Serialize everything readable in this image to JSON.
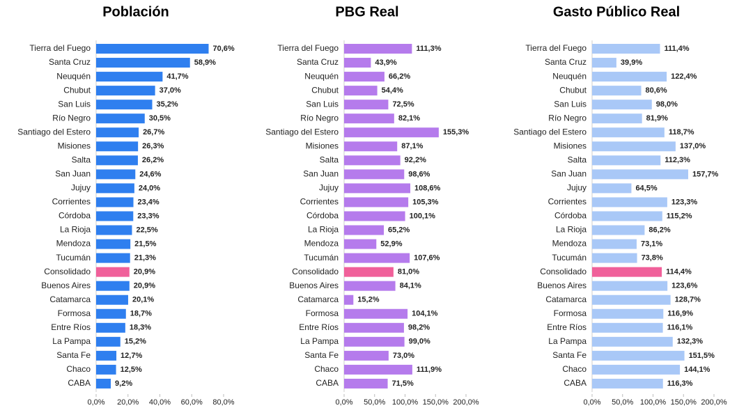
{
  "chart_data": [
    {
      "type": "barh",
      "title": "Población",
      "categories": [
        "Tierra del Fuego",
        "Santa Cruz",
        "Neuquén",
        "Chubut",
        "San Luis",
        "Río Negro",
        "Santiago del Estero",
        "Misiones",
        "Salta",
        "San Juan",
        "Jujuy",
        "Corrientes",
        "Córdoba",
        "La Rioja",
        "Mendoza",
        "Tucumán",
        "Consolidado",
        "Buenos Aires",
        "Catamarca",
        "Formosa",
        "Entre Ríos",
        "La Pampa",
        "Santa Fe",
        "Chaco",
        "CABA"
      ],
      "values": [
        70.6,
        58.9,
        41.7,
        37.0,
        35.2,
        30.5,
        26.7,
        26.3,
        26.2,
        24.6,
        24.0,
        23.4,
        23.3,
        22.5,
        21.5,
        21.3,
        20.9,
        20.9,
        20.1,
        18.7,
        18.3,
        15.2,
        12.7,
        12.5,
        9.2
      ],
      "value_labels": [
        "70,6%",
        "58,9%",
        "41,7%",
        "37,0%",
        "35,2%",
        "30,5%",
        "26,7%",
        "26,3%",
        "26,2%",
        "24,6%",
        "24,0%",
        "23,4%",
        "23,3%",
        "22,5%",
        "21,5%",
        "21,3%",
        "20,9%",
        "20,9%",
        "20,1%",
        "18,7%",
        "18,3%",
        "15,2%",
        "12,7%",
        "12,5%",
        "9,2%"
      ],
      "colors": [
        "#2f7fef",
        "#2f7fef",
        "#2f7fef",
        "#2f7fef",
        "#2f7fef",
        "#2f7fef",
        "#2f7fef",
        "#2f7fef",
        "#2f7fef",
        "#2f7fef",
        "#2f7fef",
        "#2f7fef",
        "#2f7fef",
        "#2f7fef",
        "#2f7fef",
        "#2f7fef",
        "#f0609a",
        "#2f7fef",
        "#2f7fef",
        "#2f7fef",
        "#2f7fef",
        "#2f7fef",
        "#2f7fef",
        "#2f7fef",
        "#2f7fef"
      ],
      "xlim": [
        0,
        80
      ],
      "xticks": [
        {
          "value": 0,
          "label": "0,0%"
        },
        {
          "value": 20,
          "label": "20,0%"
        },
        {
          "value": 40,
          "label": "40,0%"
        },
        {
          "value": 60,
          "label": "60,0%"
        },
        {
          "value": 80,
          "label": "80,0%"
        }
      ]
    },
    {
      "type": "barh",
      "title": "PBG Real",
      "categories": [
        "Tierra del Fuego",
        "Santa Cruz",
        "Neuquén",
        "Chubut",
        "San Luis",
        "Río Negro",
        "Santiago del Estero",
        "Misiones",
        "Salta",
        "San Juan",
        "Jujuy",
        "Corrientes",
        "Córdoba",
        "La Rioja",
        "Mendoza",
        "Tucumán",
        "Consolidado",
        "Buenos Aires",
        "Catamarca",
        "Formosa",
        "Entre Ríos",
        "La Pampa",
        "Santa Fe",
        "Chaco",
        "CABA"
      ],
      "values": [
        111.3,
        43.9,
        66.2,
        54.4,
        72.5,
        82.1,
        155.3,
        87.1,
        92.2,
        98.6,
        108.6,
        105.3,
        100.1,
        65.2,
        52.9,
        107.6,
        81.0,
        84.1,
        15.2,
        104.1,
        98.2,
        99.0,
        73.0,
        111.9,
        71.5
      ],
      "value_labels": [
        "111,3%",
        "43,9%",
        "66,2%",
        "54,4%",
        "72,5%",
        "82,1%",
        "155,3%",
        "87,1%",
        "92,2%",
        "98,6%",
        "108,6%",
        "105,3%",
        "100,1%",
        "65,2%",
        "52,9%",
        "107,6%",
        "81,0%",
        "84,1%",
        "15,2%",
        "104,1%",
        "98,2%",
        "99,0%",
        "73,0%",
        "111,9%",
        "71,5%"
      ],
      "colors": [
        "#b57bec",
        "#b57bec",
        "#b57bec",
        "#b57bec",
        "#b57bec",
        "#b57bec",
        "#b57bec",
        "#b57bec",
        "#b57bec",
        "#b57bec",
        "#b57bec",
        "#b57bec",
        "#b57bec",
        "#b57bec",
        "#b57bec",
        "#b57bec",
        "#f0609a",
        "#b57bec",
        "#b57bec",
        "#b57bec",
        "#b57bec",
        "#b57bec",
        "#b57bec",
        "#b57bec",
        "#b57bec"
      ],
      "xlim": [
        0,
        200
      ],
      "xticks": [
        {
          "value": 0,
          "label": "0,0%"
        },
        {
          "value": 50,
          "label": "50,0%"
        },
        {
          "value": 100,
          "label": "100,0%"
        },
        {
          "value": 150,
          "label": "150,0%"
        },
        {
          "value": 200,
          "label": "200,0%"
        }
      ]
    },
    {
      "type": "barh",
      "title": "Gasto Público Real",
      "categories": [
        "Tierra del Fuego",
        "Santa Cruz",
        "Neuquén",
        "Chubut",
        "San Luis",
        "Río Negro",
        "Santiago del Estero",
        "Misiones",
        "Salta",
        "San Juan",
        "Jujuy",
        "Corrientes",
        "Córdoba",
        "La Rioja",
        "Mendoza",
        "Tucumán",
        "Consolidado",
        "Buenos Aires",
        "Catamarca",
        "Formosa",
        "Entre Ríos",
        "La Pampa",
        "Santa Fe",
        "Chaco",
        "CABA"
      ],
      "values": [
        111.4,
        39.9,
        122.4,
        80.6,
        98.0,
        81.9,
        118.7,
        137.0,
        112.3,
        157.7,
        64.5,
        123.3,
        115.2,
        86.2,
        73.1,
        73.8,
        114.4,
        123.6,
        128.7,
        116.9,
        116.1,
        132.3,
        151.5,
        144.1,
        116.3
      ],
      "value_labels": [
        "111,4%",
        "39,9%",
        "122,4%",
        "80,6%",
        "98,0%",
        "81,9%",
        "118,7%",
        "137,0%",
        "112,3%",
        "157,7%",
        "64,5%",
        "123,3%",
        "115,2%",
        "86,2%",
        "73,1%",
        "73,8%",
        "114,4%",
        "123,6%",
        "128,7%",
        "116,9%",
        "116,1%",
        "132,3%",
        "151,5%",
        "144,1%",
        "116,3%"
      ],
      "colors": [
        "#a9c8f7",
        "#a9c8f7",
        "#a9c8f7",
        "#a9c8f7",
        "#a9c8f7",
        "#a9c8f7",
        "#a9c8f7",
        "#a9c8f7",
        "#a9c8f7",
        "#a9c8f7",
        "#a9c8f7",
        "#a9c8f7",
        "#a9c8f7",
        "#a9c8f7",
        "#a9c8f7",
        "#a9c8f7",
        "#f0609a",
        "#a9c8f7",
        "#a9c8f7",
        "#a9c8f7",
        "#a9c8f7",
        "#a9c8f7",
        "#a9c8f7",
        "#a9c8f7",
        "#a9c8f7"
      ],
      "xlim": [
        0,
        200
      ],
      "xticks": [
        {
          "value": 0,
          "label": "0,0%"
        },
        {
          "value": 50,
          "label": "50,0%"
        },
        {
          "value": 100,
          "label": "100,0%"
        },
        {
          "value": 150,
          "label": "150,0%"
        },
        {
          "value": 200,
          "label": "200,0%"
        }
      ]
    }
  ]
}
